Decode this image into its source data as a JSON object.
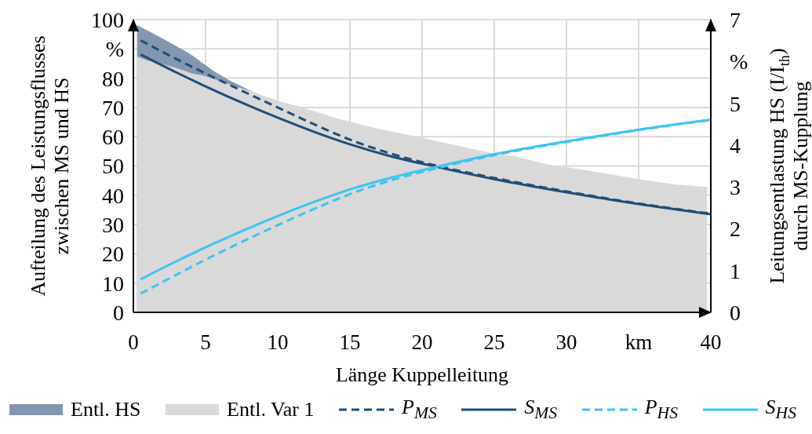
{
  "chart_data": {
    "type": "line",
    "xlabel": "Länge Kuppelleitung",
    "ylabel": "Aufteilung des Leistungsflusses\nzwischen MS und HS",
    "y2label": "Leitungsentlastung HS (I/I$_{th}$)\ndurch MS-Kupplung",
    "xlim": [
      0,
      40
    ],
    "xticks": [
      0,
      5,
      10,
      15,
      20,
      25,
      30,
      {
        "value": 35,
        "label": "km"
      },
      40
    ],
    "ylim": [
      0,
      100
    ],
    "yticks": [
      0,
      10,
      20,
      30,
      40,
      50,
      60,
      70,
      80,
      {
        "value": 90,
        "label": "%"
      },
      100
    ],
    "y2lim": [
      0,
      7
    ],
    "y2ticks": [
      0,
      1,
      2,
      3,
      4,
      5,
      {
        "value": 6,
        "label": "%"
      },
      7
    ],
    "grid": true,
    "legend": "bottom",
    "marker": "none",
    "series": [
      {
        "name": "Entl. HS",
        "type": "area",
        "axis": "y2",
        "color": "#8497b0",
        "x": [
          0.25,
          1.8,
          3.9,
          5.6,
          6.7,
          7.7,
          8.3
        ],
        "values": [
          6.87,
          6.59,
          6.19,
          5.76,
          5.54,
          5.37,
          5.27
        ]
      },
      {
        "name": "Entl. Var 1",
        "type": "area",
        "axis": "y2",
        "color": "#d9d9d9",
        "x": [
          0.25,
          1,
          2,
          3,
          4,
          5,
          6.5,
          8.3,
          10.2,
          11.4,
          12.7,
          14.3,
          16.7,
          19.4,
          21.9,
          24.8,
          26.6,
          28.8,
          30,
          32.4,
          34.9,
          37.5,
          39.75
        ],
        "values": [
          6.12,
          6.02,
          5.94,
          5.84,
          5.72,
          5.65,
          5.47,
          5.27,
          5.04,
          4.93,
          4.79,
          4.62,
          4.41,
          4.22,
          4.03,
          3.81,
          3.72,
          3.53,
          3.47,
          3.34,
          3.19,
          3.06,
          3.0
        ]
      },
      {
        "name": "P$_{MS}$",
        "line_style": "dashed",
        "color": "#1f4e79",
        "x": [
          0.5,
          3,
          5,
          8,
          10,
          12.5,
          15,
          18,
          21,
          25,
          30,
          35,
          40
        ],
        "values": [
          92.9,
          86.5,
          81.6,
          74.6,
          70.0,
          64.3,
          59.0,
          54.0,
          50.1,
          45.9,
          41.3,
          37.2,
          33.7
        ]
      },
      {
        "name": "S$_{MS}$",
        "line_style": "solid",
        "color": "#1f4e79",
        "x": [
          0.5,
          3,
          5,
          8,
          10,
          12.5,
          15,
          18,
          21,
          25,
          30,
          35,
          40
        ],
        "values": [
          88.1,
          81.9,
          77.2,
          70.6,
          66.5,
          61.7,
          57.4,
          53.1,
          49.7,
          45.5,
          41.0,
          37.0,
          33.5
        ]
      },
      {
        "name": "P$_{HS}$",
        "line_style": "dashed",
        "color": "#3fc3f2",
        "x": [
          0.5,
          3,
          5,
          8,
          10,
          12.5,
          15,
          18,
          21,
          25,
          30,
          35,
          40
        ],
        "values": [
          6.4,
          12.9,
          18.0,
          25.2,
          29.8,
          35.3,
          40.4,
          45.3,
          49.2,
          53.7,
          58.2,
          62.3,
          65.7
        ]
      },
      {
        "name": "S$_{HS}$",
        "line_style": "solid",
        "color": "#3fc3f2",
        "x": [
          0.5,
          3,
          5,
          8,
          10,
          12.5,
          15,
          18,
          21,
          25,
          30,
          35,
          40
        ],
        "values": [
          11.3,
          17.5,
          22.2,
          28.8,
          32.9,
          37.7,
          42.0,
          46.2,
          49.7,
          54.0,
          58.4,
          62.4,
          65.8
        ]
      }
    ]
  }
}
